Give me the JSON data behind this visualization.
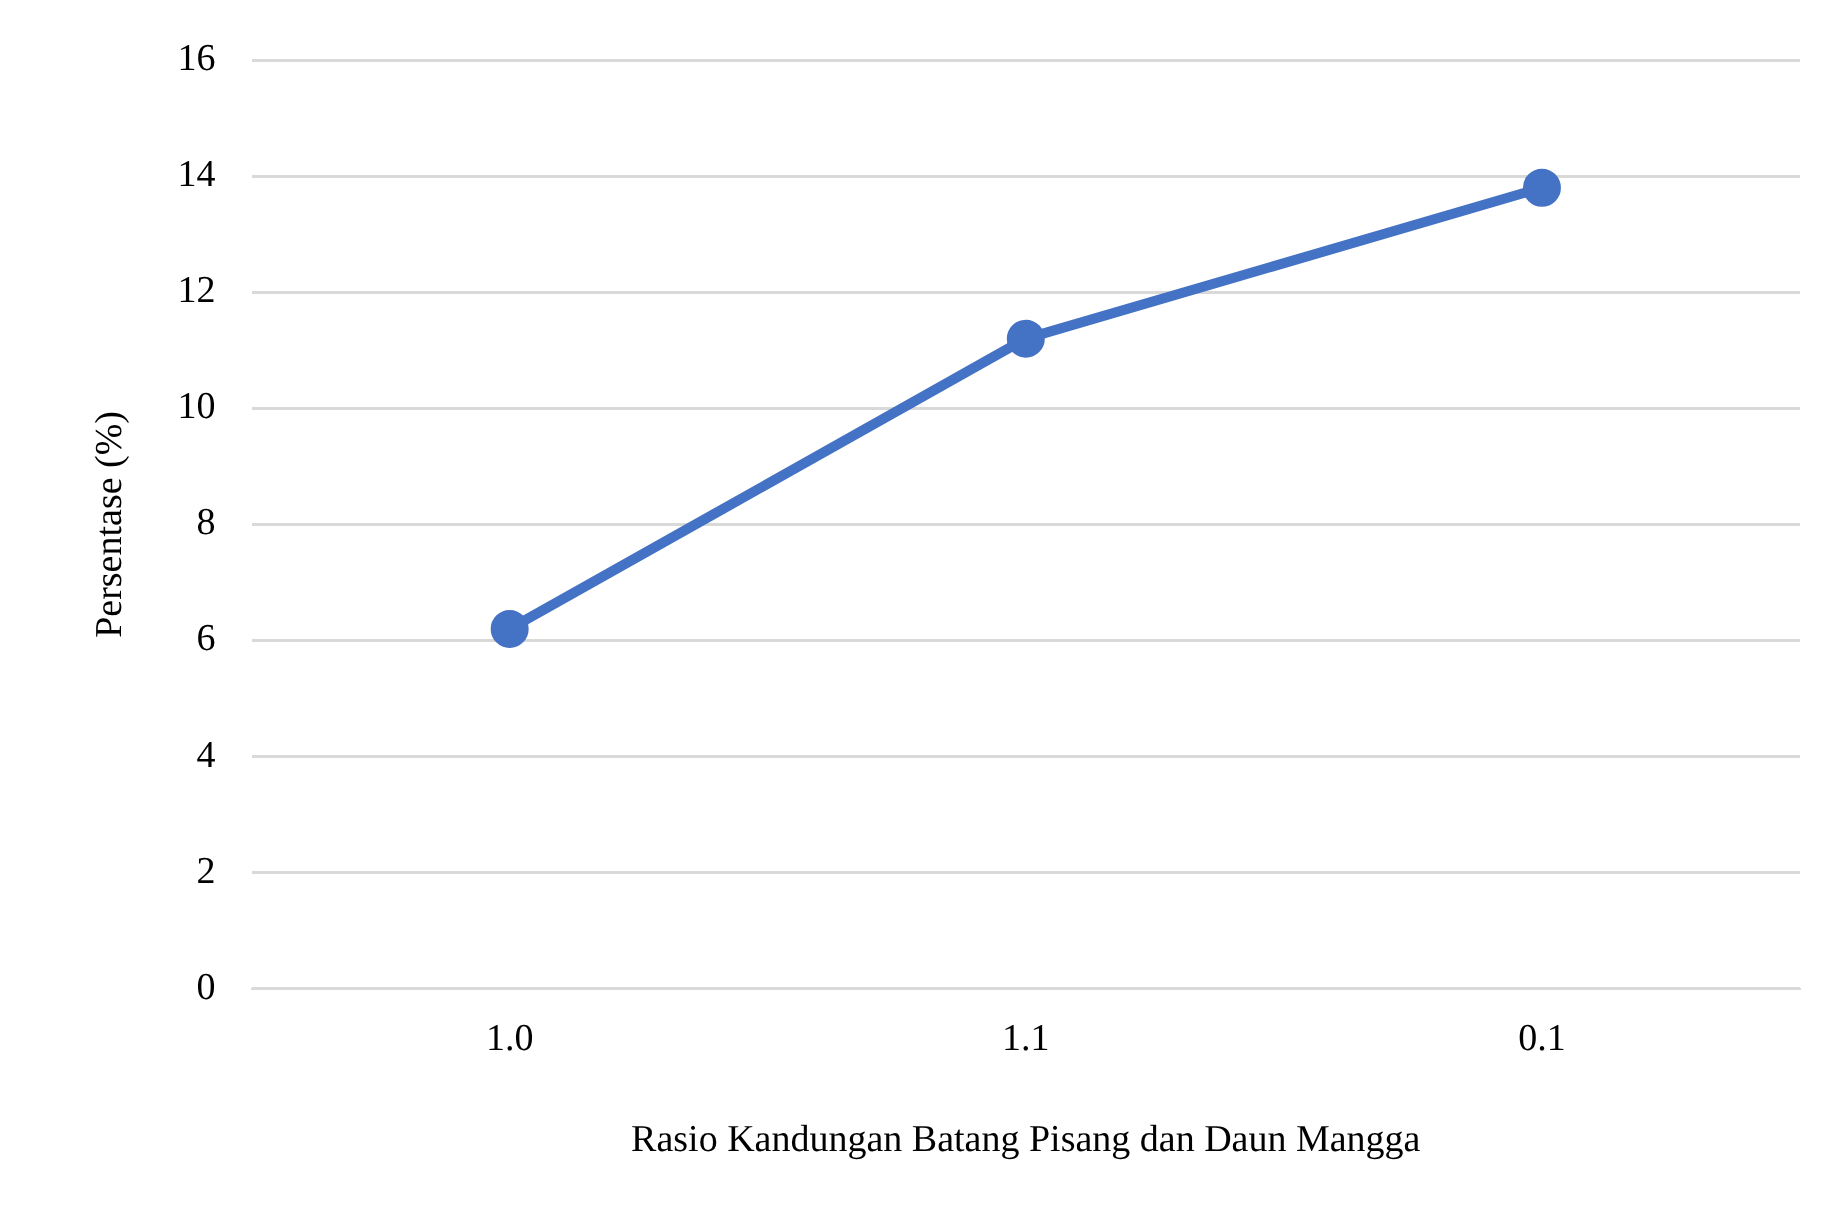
{
  "chart_data": {
    "type": "line",
    "xlabel": "Rasio Kandungan Batang Pisang dan Daun Mangga",
    "ylabel": "Persentase (%)",
    "categories": [
      "1.0",
      "1.1",
      "0.1"
    ],
    "series": [
      {
        "color": "#4472c4",
        "values": [
          6.2,
          11.2,
          13.8
        ]
      }
    ],
    "ylim": [
      0,
      16
    ],
    "yticks": [
      0,
      2,
      4,
      6,
      8,
      10,
      12,
      14,
      16
    ],
    "grid": "y",
    "legend": false,
    "marker": "circle",
    "line_style": "solid"
  }
}
